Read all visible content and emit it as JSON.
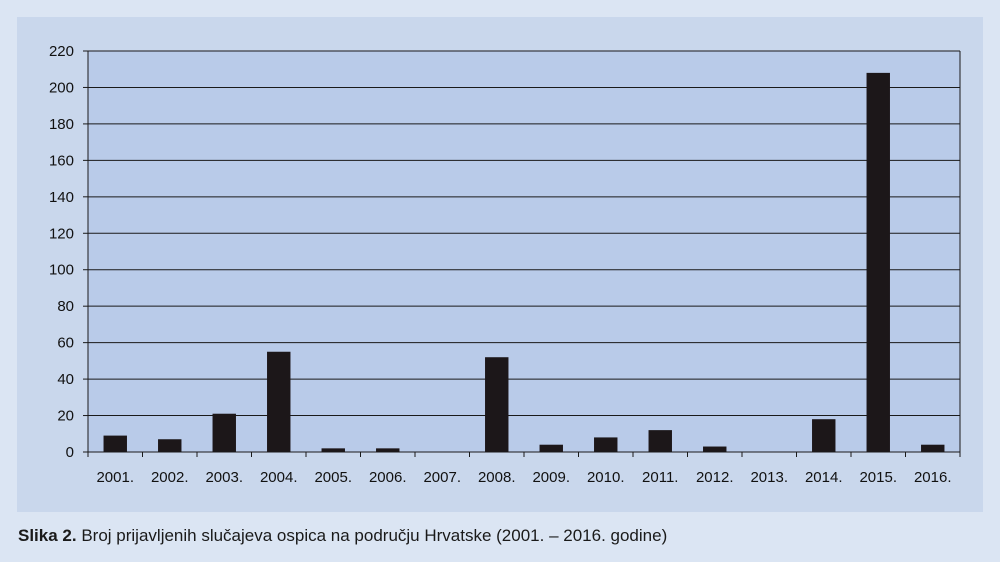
{
  "caption": {
    "label": "Slika 2.",
    "text": " Broj prijavljenih slučajeva ospica na području Hrvatske (2001. – 2016. godine)"
  },
  "chart_data": {
    "type": "bar",
    "categories": [
      "2001.",
      "2002.",
      "2003.",
      "2004.",
      "2005.",
      "2006.",
      "2007.",
      "2008.",
      "2009.",
      "2010.",
      "2011.",
      "2012.",
      "2013.",
      "2014.",
      "2015.",
      "2016."
    ],
    "values": [
      9,
      7,
      21,
      55,
      2,
      2,
      0,
      52,
      4,
      8,
      12,
      3,
      0,
      18,
      208,
      4
    ],
    "ylim": [
      0,
      220
    ],
    "yticks": [
      0,
      20,
      40,
      60,
      80,
      100,
      120,
      140,
      160,
      180,
      200,
      220
    ],
    "grid": true,
    "colors": {
      "plot_background": "#b9cbe9",
      "bar": "#1c1719",
      "grid": "#1a1a1a",
      "panel": "#c9d7ec",
      "page": "#dbe5f3"
    }
  }
}
